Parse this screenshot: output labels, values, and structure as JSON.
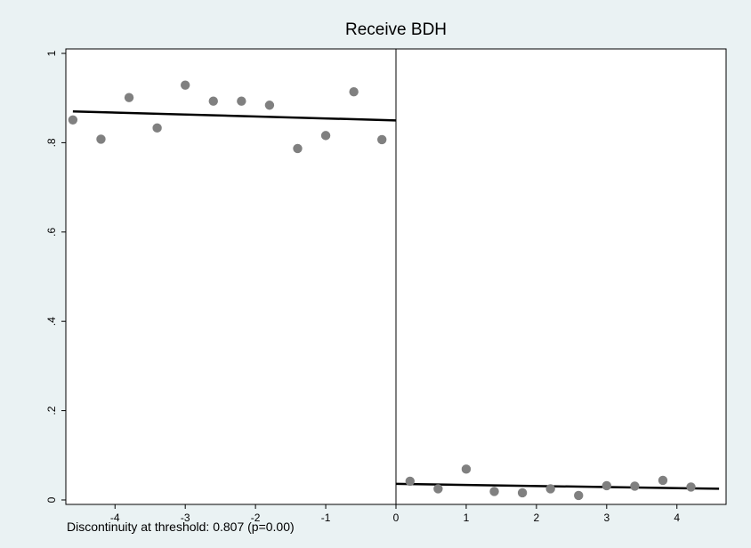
{
  "chart_data": {
    "type": "scatter",
    "title": "Receive BDH",
    "xlabel": "",
    "ylabel": "",
    "xlim": [
      -4.7,
      4.7
    ],
    "ylim": [
      -0.01,
      1.01
    ],
    "x_ticks": [
      -4,
      -3,
      -2,
      -1,
      0,
      1,
      2,
      3,
      4
    ],
    "x_tick_labels": [
      "-4",
      "-3",
      "-2",
      "-1",
      "0",
      "1",
      "2",
      "3",
      "4"
    ],
    "y_ticks": [
      0,
      0.2,
      0.4,
      0.6,
      0.8,
      1
    ],
    "y_tick_labels": [
      "0",
      ".2",
      ".4",
      ".6",
      ".8",
      "1"
    ],
    "threshold_x": 0,
    "grid": false,
    "series": [
      {
        "marker": "point",
        "x": [
          -4.6,
          -4.2,
          -3.8,
          -3.4,
          -3.0,
          -2.6,
          -2.2,
          -1.8,
          -1.4,
          -1.0,
          -0.6,
          -0.2,
          0.2,
          0.6,
          1.0,
          1.4,
          1.8,
          2.2,
          2.6,
          3.0,
          3.4,
          3.8,
          4.2
        ],
        "y": [
          0.851,
          0.808,
          0.901,
          0.833,
          0.929,
          0.893,
          0.893,
          0.884,
          0.787,
          0.816,
          0.914,
          0.807,
          0.042,
          0.025,
          0.069,
          0.019,
          0.016,
          0.025,
          0.01,
          0.032,
          0.031,
          0.044,
          0.029
        ]
      }
    ],
    "fit_lines": [
      {
        "x": [
          -4.6,
          0.0
        ],
        "y": [
          0.87,
          0.85
        ]
      },
      {
        "x": [
          0.0,
          4.6
        ],
        "y": [
          0.036,
          0.025
        ]
      }
    ],
    "annotation": "Discontinuity at threshold: 0.807 (p=0.00)",
    "colors": {
      "background": "#eaf2f3",
      "plot_area": "#ffffff",
      "markers": "#808080",
      "lines": "#000000"
    }
  }
}
